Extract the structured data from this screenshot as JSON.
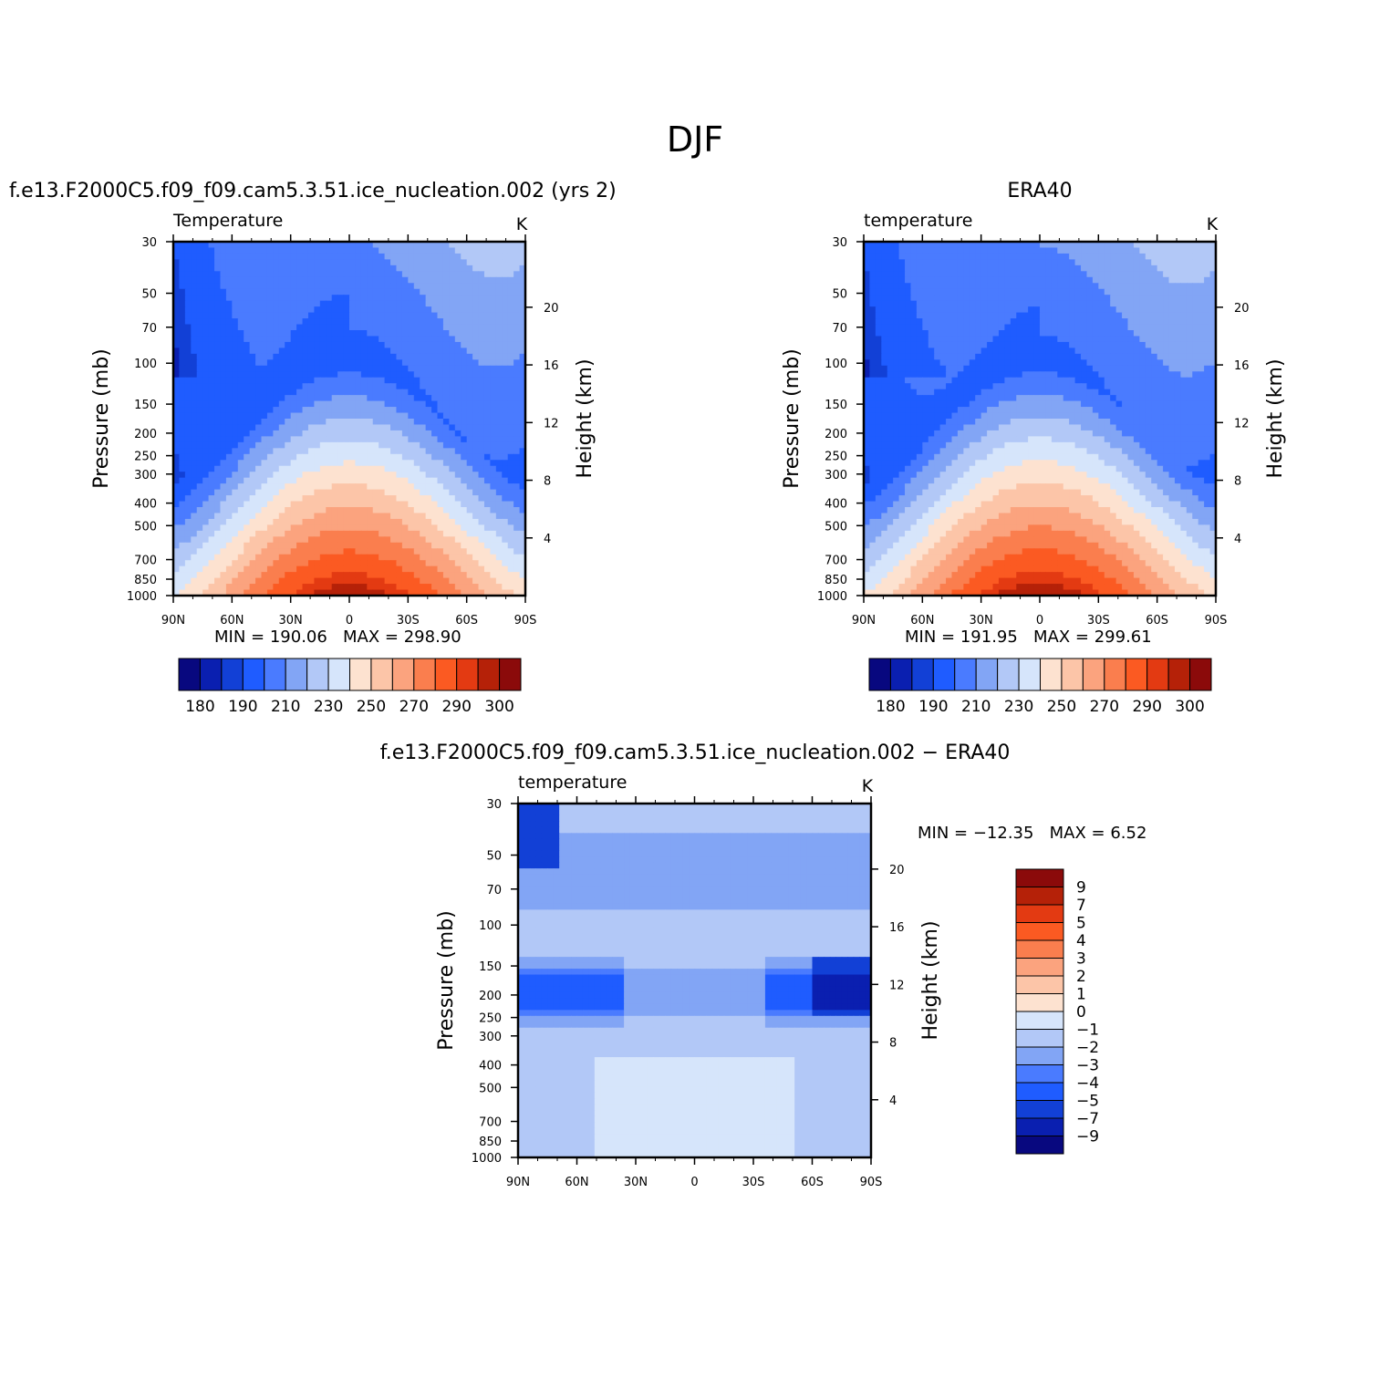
{
  "figure": {
    "title": "DJF"
  },
  "chart_data": [
    {
      "type": "heatmap",
      "id": "model",
      "title": "f.e13.F2000C5.f09_f09.cam5.3.51.ice_nucleation.002 (yrs 2)",
      "variable_label": "Temperature",
      "units": "K",
      "xlabel": "",
      "ylabel": "Pressure (mb)",
      "y2label": "Height (km)",
      "x_ticks": [
        "90N",
        "60N",
        "30N",
        "0",
        "30S",
        "60S",
        "90S"
      ],
      "y_ticks": [
        "30",
        "50",
        "70",
        "100",
        "150",
        "200",
        "250",
        "300",
        "400",
        "500",
        "700",
        "850",
        "1000"
      ],
      "y2_ticks": [
        "20",
        "16",
        "12",
        "8",
        "4"
      ],
      "min_label": "MIN =",
      "min_value": "190.06",
      "max_label": "MAX =",
      "max_value": "298.90",
      "min": 190.06,
      "max": 298.9,
      "colorbar_levels": [
        "180",
        "190",
        "210",
        "230",
        "250",
        "270",
        "290",
        "300"
      ],
      "colorbar_orientation": "horizontal"
    },
    {
      "type": "heatmap",
      "id": "obs",
      "title": "ERA40",
      "variable_label": "temperature",
      "units": "K",
      "xlabel": "",
      "ylabel": "Pressure (mb)",
      "y2label": "Height (km)",
      "x_ticks": [
        "90N",
        "60N",
        "30N",
        "0",
        "30S",
        "60S",
        "90S"
      ],
      "y_ticks": [
        "30",
        "50",
        "70",
        "100",
        "150",
        "200",
        "250",
        "300",
        "400",
        "500",
        "700",
        "850",
        "1000"
      ],
      "y2_ticks": [
        "20",
        "16",
        "12",
        "8",
        "4"
      ],
      "min_label": "MIN =",
      "min_value": "191.95",
      "max_label": "MAX =",
      "max_value": "299.61",
      "min": 191.95,
      "max": 299.61,
      "colorbar_levels": [
        "180",
        "190",
        "210",
        "230",
        "250",
        "270",
        "290",
        "300"
      ],
      "colorbar_orientation": "horizontal"
    },
    {
      "type": "heatmap",
      "id": "diff",
      "title": "f.e13.F2000C5.f09_f09.cam5.3.51.ice_nucleation.002 − ERA40",
      "variable_label": "temperature",
      "units": "K",
      "xlabel": "",
      "ylabel": "Pressure (mb)",
      "y2label": "Height (km)",
      "x_ticks": [
        "90N",
        "60N",
        "30N",
        "0",
        "30S",
        "60S",
        "90S"
      ],
      "y_ticks": [
        "30",
        "50",
        "70",
        "100",
        "150",
        "200",
        "250",
        "300",
        "400",
        "500",
        "700",
        "850",
        "1000"
      ],
      "y2_ticks": [
        "20",
        "16",
        "12",
        "8",
        "4"
      ],
      "min_label": "MIN =",
      "min_value": "−12.35",
      "max_label": "MAX =",
      "max_value": "6.52",
      "min": -12.35,
      "max": 6.52,
      "colorbar_levels": [
        "9",
        "7",
        "5",
        "4",
        "3",
        "2",
        "1",
        "0",
        "−1",
        "−2",
        "−3",
        "−4",
        "−5",
        "−7",
        "−9"
      ],
      "colorbar_orientation": "vertical"
    }
  ],
  "palette": [
    "#08087f",
    "#0a1fb0",
    "#1240d6",
    "#1f5cff",
    "#4a7bff",
    "#82a5f5",
    "#b2c8f7",
    "#d6e5fb",
    "#fde2d0",
    "#fcc5a8",
    "#fba37e",
    "#fa7e4e",
    "#fb5a22",
    "#e33a12",
    "#b52108",
    "#8b0a0a"
  ]
}
